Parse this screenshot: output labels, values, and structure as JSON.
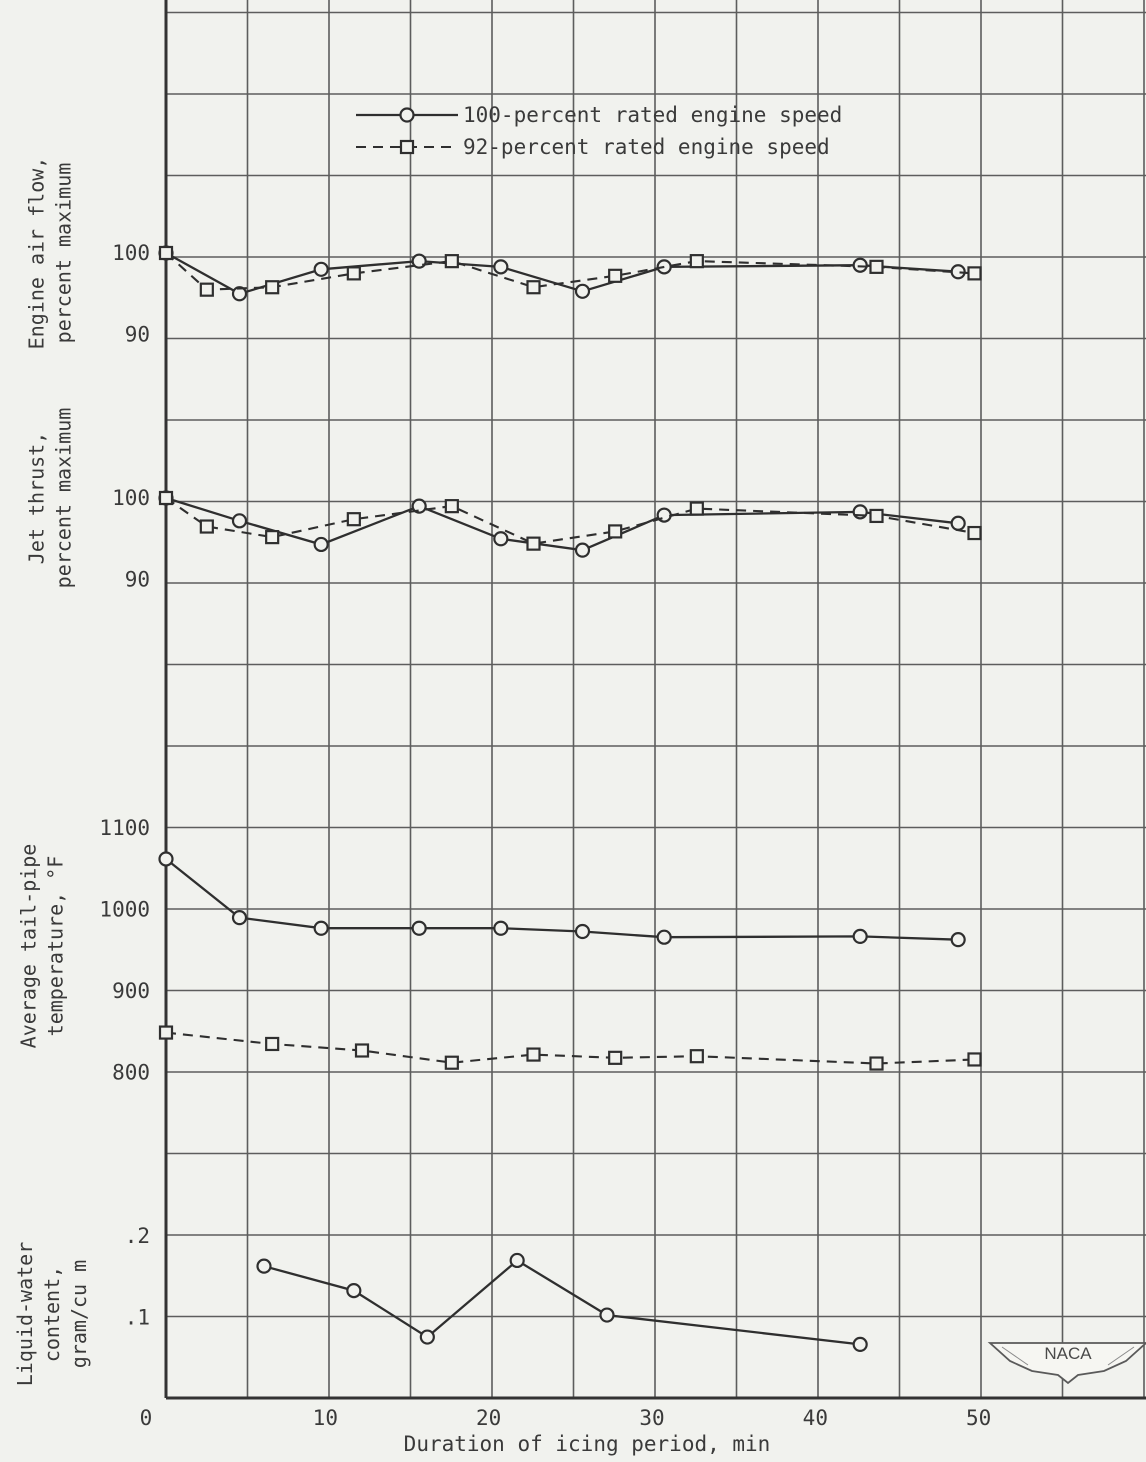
{
  "chart_data": [
    {
      "type": "line",
      "panel": "airflow",
      "ylabel_lines": [
        "Engine air flow,",
        "percent maximum"
      ],
      "yticks": [
        {
          "value": 100,
          "label": "100"
        },
        {
          "value": 90,
          "label": "90"
        }
      ],
      "ylim": [
        80,
        110
      ],
      "legend": [
        {
          "series": "100",
          "label": "100-percent rated engine speed",
          "marker": "circle",
          "line": "solid"
        },
        {
          "series": "92",
          "label": "92-percent rated engine speed",
          "marker": "square",
          "line": "dashed"
        }
      ],
      "series": [
        {
          "id": "100",
          "marker": "circle",
          "line": "solid",
          "points": [
            [
              0,
              100
            ],
            [
              4.5,
              95
            ],
            [
              9.5,
              98
            ],
            [
              15.5,
              99
            ],
            [
              20.5,
              98.3
            ],
            [
              25.5,
              95.3
            ],
            [
              30.5,
              98.3
            ],
            [
              42.5,
              98.5
            ],
            [
              48.5,
              97.7
            ]
          ]
        },
        {
          "id": "92",
          "marker": "square",
          "line": "dashed",
          "points": [
            [
              0,
              100
            ],
            [
              2.5,
              95.5
            ],
            [
              6.5,
              95.8
            ],
            [
              11.5,
              97.5
            ],
            [
              17.5,
              99
            ],
            [
              22.5,
              95.8
            ],
            [
              27.5,
              97.2
            ],
            [
              32.5,
              99
            ],
            [
              43.5,
              98.3
            ],
            [
              49.5,
              97.5
            ]
          ]
        }
      ]
    },
    {
      "type": "line",
      "panel": "thrust",
      "ylabel_lines": [
        "Jet thrust,",
        "percent maximum"
      ],
      "yticks": [
        {
          "value": 100,
          "label": "100"
        },
        {
          "value": 90,
          "label": "90"
        }
      ],
      "ylim": [
        80,
        110
      ],
      "series": [
        {
          "id": "100",
          "marker": "circle",
          "line": "solid",
          "points": [
            [
              0,
              100
            ],
            [
              4.5,
              97.2
            ],
            [
              9.5,
              94.3
            ],
            [
              15.5,
              99
            ],
            [
              20.5,
              95
            ],
            [
              25.5,
              93.6
            ],
            [
              30.5,
              97.9
            ],
            [
              42.5,
              98.3
            ],
            [
              48.5,
              96.9
            ]
          ]
        },
        {
          "id": "92",
          "marker": "square",
          "line": "dashed",
          "points": [
            [
              0,
              100
            ],
            [
              2.5,
              96.5
            ],
            [
              6.5,
              95.2
            ],
            [
              11.5,
              97.4
            ],
            [
              17.5,
              99
            ],
            [
              22.5,
              94.4
            ],
            [
              27.5,
              95.9
            ],
            [
              32.5,
              98.7
            ],
            [
              43.5,
              97.8
            ],
            [
              49.5,
              95.7
            ]
          ]
        }
      ]
    },
    {
      "type": "line",
      "panel": "temperature",
      "ylabel_lines": [
        "Average tail-pipe",
        "temperature, °F"
      ],
      "yticks": [
        {
          "value": 1100,
          "label": "1100"
        },
        {
          "value": 1000,
          "label": "1000"
        },
        {
          "value": 900,
          "label": "900"
        },
        {
          "value": 800,
          "label": "800"
        }
      ],
      "ylim": [
        700,
        1200
      ],
      "series": [
        {
          "id": "100",
          "marker": "circle",
          "line": "solid",
          "points": [
            [
              0,
              1062
            ],
            [
              4.5,
              990
            ],
            [
              9.5,
              977
            ],
            [
              15.5,
              977
            ],
            [
              20.5,
              977
            ],
            [
              25.5,
              973
            ],
            [
              30.5,
              966
            ],
            [
              42.5,
              967
            ],
            [
              48.5,
              963
            ]
          ]
        },
        {
          "id": "92",
          "marker": "square",
          "line": "dashed",
          "points": [
            [
              0,
              849
            ],
            [
              6.5,
              835
            ],
            [
              12,
              827
            ],
            [
              17.5,
              812
            ],
            [
              22.5,
              822
            ],
            [
              27.5,
              818
            ],
            [
              32.5,
              820
            ],
            [
              43.5,
              811
            ],
            [
              49.5,
              816
            ]
          ]
        }
      ]
    },
    {
      "type": "line",
      "panel": "water",
      "ylabel_lines": [
        "Liquid-water",
        "content,",
        "gram/cu m"
      ],
      "yticks": [
        {
          "value": 0.2,
          "label": ".2"
        },
        {
          "value": 0.1,
          "label": ".1"
        }
      ],
      "ylim": [
        0,
        0.3
      ],
      "series": [
        {
          "id": "100",
          "marker": "circle",
          "line": "solid",
          "points": [
            [
              6,
              0.163
            ],
            [
              11.5,
              0.133
            ],
            [
              16,
              0.076
            ],
            [
              21.5,
              0.17
            ],
            [
              27,
              0.103
            ],
            [
              42.5,
              0.067
            ]
          ]
        }
      ]
    }
  ],
  "x_axis": {
    "xlabel": "Duration of icing period, min",
    "xlim": [
      0,
      60
    ],
    "ticks": [
      {
        "value": 0,
        "label": "0"
      },
      {
        "value": 10,
        "label": "10"
      },
      {
        "value": 20,
        "label": "20"
      },
      {
        "value": 30,
        "label": "30"
      },
      {
        "value": 40,
        "label": "40"
      },
      {
        "value": 50,
        "label": "50"
      }
    ]
  },
  "logo": {
    "text": "NACA"
  }
}
